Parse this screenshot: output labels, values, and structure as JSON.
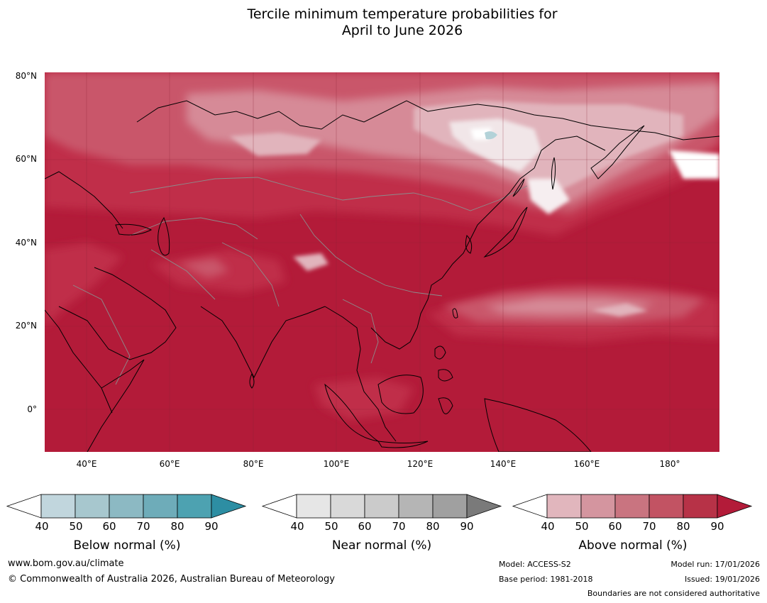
{
  "title": {
    "line1": "Tercile minimum temperature probabilities for",
    "line2": "April to June 2026"
  },
  "map": {
    "lat_labels": [
      "80°N",
      "60°N",
      "40°N",
      "20°N",
      "0°"
    ],
    "lon_labels": [
      "40°E",
      "60°E",
      "80°E",
      "100°E",
      "120°E",
      "140°E",
      "160°E",
      "180°"
    ],
    "extent": {
      "lon": [
        30,
        192
      ],
      "lat": [
        -10,
        80
      ]
    },
    "dominant_category": "Above normal",
    "dominant_probability_class": "90"
  },
  "legends": [
    {
      "label": "Below normal (%)",
      "ticks": [
        "40",
        "50",
        "60",
        "70",
        "80",
        "90"
      ],
      "colors": [
        "#ffffff",
        "#c1d6dd",
        "#a7c7ce",
        "#8cb9c3",
        "#6eacb9",
        "#4da2b1",
        "#2d8ea3"
      ]
    },
    {
      "label": "Near normal (%)",
      "ticks": [
        "40",
        "50",
        "60",
        "70",
        "80",
        "90"
      ],
      "colors": [
        "#ffffff",
        "#e6e6e6",
        "#d9d9d9",
        "#cbcbcb",
        "#b5b5b5",
        "#a0a0a0",
        "#7a7a7a"
      ]
    },
    {
      "label": "Above normal (%)",
      "ticks": [
        "40",
        "50",
        "60",
        "70",
        "80",
        "90"
      ],
      "colors": [
        "#ffffff",
        "#e1b6bd",
        "#d4959f",
        "#c97480",
        "#c25363",
        "#b73247",
        "#b31b39"
      ]
    }
  ],
  "footer": {
    "website": "www.bom.gov.au/climate",
    "copyright": "© Commonwealth of Australia 2026, Australian Bureau of Meteorology",
    "model": "Model: ACCESS-S2",
    "base_period": "Base period: 1981-2018",
    "model_run": "Model run: 17/01/2026",
    "issued": "Issued: 19/01/2026",
    "disclaimer": "Boundaries are not considered authoritative"
  }
}
